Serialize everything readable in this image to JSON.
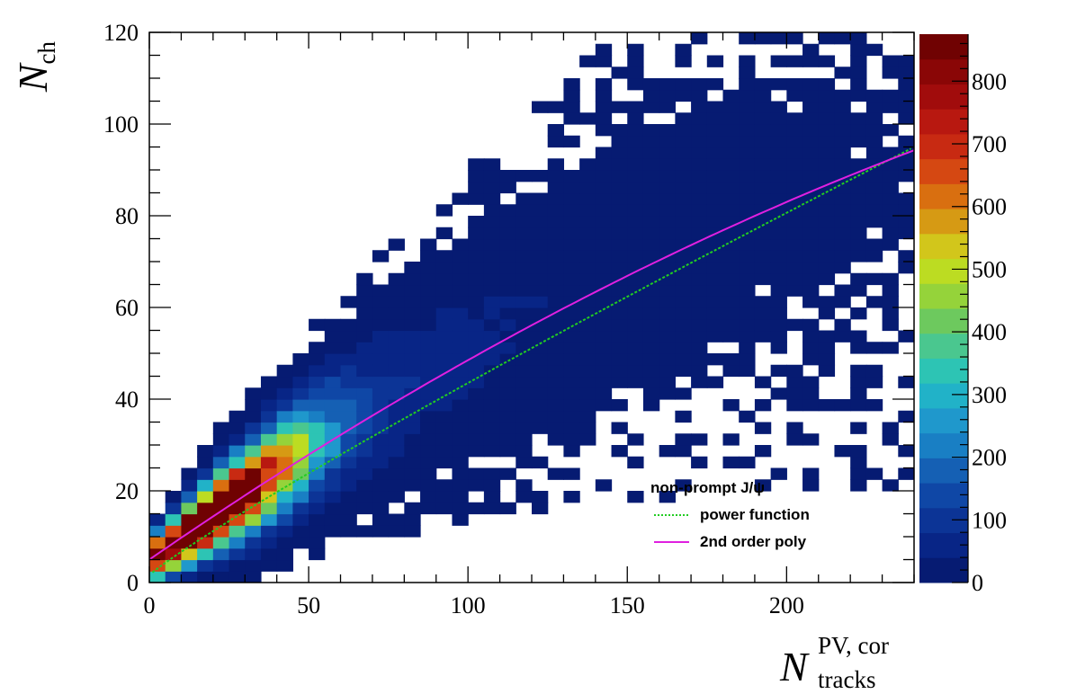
{
  "chart_data": {
    "type": "heatmap",
    "title": "",
    "xlabel": {
      "main": "N",
      "sup": "PV, cor",
      "sub": "tracks"
    },
    "ylabel": {
      "main": "N",
      "sub": "ch"
    },
    "xlim": [
      0,
      240
    ],
    "ylim": [
      0,
      120
    ],
    "x_ticks": [
      0,
      50,
      100,
      150,
      200
    ],
    "x_tick_labels": [
      "0",
      "50",
      "100",
      "150",
      "200"
    ],
    "y_ticks": [
      0,
      20,
      40,
      60,
      80,
      100,
      120
    ],
    "y_tick_labels": [
      "0",
      "20",
      "40",
      "60",
      "80",
      "100",
      "120"
    ],
    "bin_width_x": 5,
    "bin_width_y": 2.5,
    "z_range": [
      0,
      875
    ],
    "z_ticks": [
      0,
      100,
      200,
      300,
      400,
      500,
      600,
      700,
      800
    ],
    "z_tick_labels": [
      "0",
      "100",
      "200",
      "300",
      "400",
      "500",
      "600",
      "700",
      "800"
    ],
    "colorbar_colors": [
      "#061b72",
      "#082586",
      "#0c3496",
      "#0f47a6",
      "#1560b4",
      "#197fc4",
      "#1f98cc",
      "#21b2c8",
      "#2dc4b4",
      "#4ac78f",
      "#6dc95e",
      "#95d33a",
      "#bcdc22",
      "#d2c61b",
      "#d69a14",
      "#d96f10",
      "#d54812",
      "#c82a12",
      "#b81810",
      "#a10c0c",
      "#8a0606",
      "#700202"
    ],
    "density_model": {
      "description_free_parameters_only": true,
      "ridge": {
        "c": 4.5,
        "a": 0.53,
        "b": -0.0006
      },
      "sigma": {
        "s0": 3.0,
        "s1": 0.09
      },
      "peak": 860,
      "decay_scale": 20,
      "support_threshold": 0.0006
    },
    "series": [
      {
        "name": "non-prompt J/ψ",
        "style": "heatmap"
      },
      {
        "name": "power function",
        "style": "dotted",
        "color": "#22cc22",
        "params": {
          "a": 0.62,
          "p": 0.915
        }
      },
      {
        "name": "2nd order poly",
        "style": "solid",
        "color": "#e020e0",
        "params": {
          "c0": 5.0,
          "c1": 0.48,
          "c2": -0.00045
        }
      }
    ],
    "legend": {
      "position": "bottom-right",
      "entries": [
        "non-prompt J/ψ",
        "power function",
        "2nd order poly"
      ]
    },
    "grid": false
  }
}
